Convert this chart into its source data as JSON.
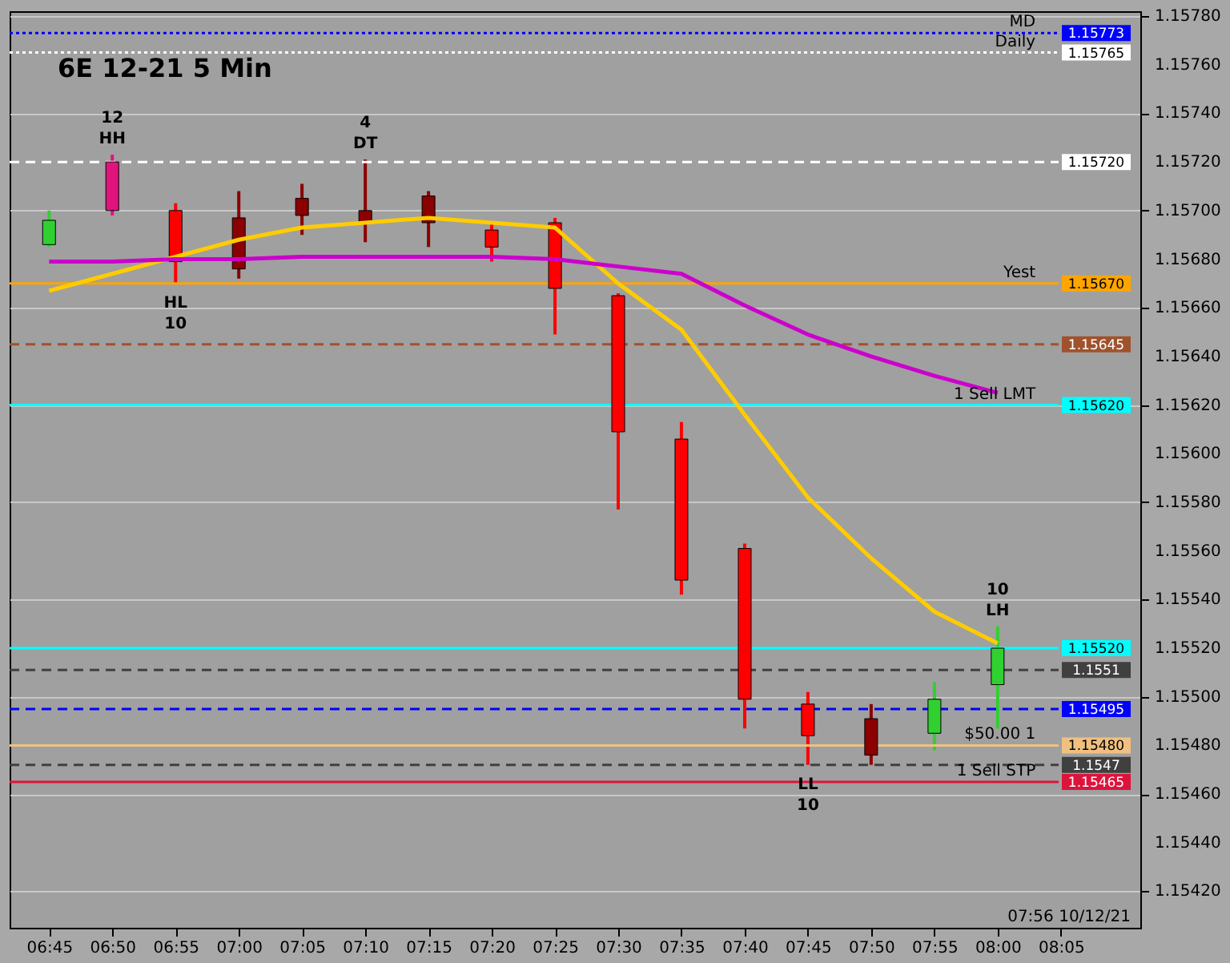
{
  "chart_data": {
    "type": "candlestick",
    "title": "6E 12-21  5 Min",
    "x": [
      6.75,
      6.8333,
      6.9167,
      7.0,
      7.0833,
      7.1667,
      7.25,
      7.3333,
      7.4167,
      7.5,
      7.5833,
      7.6667,
      7.75,
      7.8333,
      7.9167,
      8.0
    ],
    "ohlc": [
      [
        1.15686,
        1.157,
        1.15685,
        1.15696
      ],
      [
        1.157,
        1.15723,
        1.15698,
        1.1572
      ],
      [
        1.157,
        1.15703,
        1.1567,
        1.15679
      ],
      [
        1.15697,
        1.15708,
        1.15672,
        1.15676
      ],
      [
        1.15705,
        1.15711,
        1.1569,
        1.15698
      ],
      [
        1.157,
        1.15721,
        1.15687,
        1.15695
      ],
      [
        1.15706,
        1.15708,
        1.15685,
        1.15695
      ],
      [
        1.15692,
        1.15695,
        1.15679,
        1.15685
      ],
      [
        1.15695,
        1.15697,
        1.15649,
        1.15668
      ],
      [
        1.15665,
        1.15666,
        1.15577,
        1.15609
      ],
      [
        1.15606,
        1.15613,
        1.15542,
        1.15548
      ],
      [
        1.15561,
        1.15563,
        1.15487,
        1.15499
      ],
      [
        1.15497,
        1.15502,
        1.15472,
        1.15484
      ],
      [
        1.15491,
        1.15497,
        1.15472,
        1.15476
      ],
      [
        1.15485,
        1.15506,
        1.15478,
        1.15499
      ],
      [
        1.15505,
        1.15529,
        1.15487,
        1.1552
      ]
    ],
    "colors": [
      "#30d030",
      "#e0147c",
      "#ff0000",
      "#8b0000",
      "#8b0000",
      "#8b0000",
      "#8b0000",
      "#ff0000",
      "#ff0000",
      "#ff0000",
      "#ff0000",
      "#ff0000",
      "#ff0000",
      "#8b0000",
      "#30d030",
      "#30d030"
    ],
    "series": [
      {
        "type": "line",
        "color": "#ffcc00",
        "values": [
          1.15667,
          1.15674,
          1.15681,
          1.15688,
          1.15693,
          1.15695,
          1.15697,
          1.15695,
          1.15693,
          1.1567,
          1.15651,
          1.15616,
          1.15582,
          1.15557,
          1.15535,
          1.15522
        ]
      },
      {
        "type": "line",
        "color": "#cc00cc",
        "values": [
          1.15679,
          1.15679,
          1.1568,
          1.1568,
          1.15681,
          1.15681,
          1.15681,
          1.15681,
          1.1568,
          1.15677,
          1.15674,
          1.15661,
          1.15649,
          1.1564,
          1.15632,
          1.15625
        ]
      }
    ],
    "xlim": [
      6.698,
      8.188
    ],
    "ylim": [
      1.15405,
      1.15782
    ],
    "xticks": [
      {
        "value": 6.75,
        "label": "06:45"
      },
      {
        "value": 6.8333,
        "label": "06:50"
      },
      {
        "value": 6.9167,
        "label": "06:55"
      },
      {
        "value": 7.0,
        "label": "07:00"
      },
      {
        "value": 7.0833,
        "label": "07:05"
      },
      {
        "value": 7.1667,
        "label": "07:10"
      },
      {
        "value": 7.25,
        "label": "07:15"
      },
      {
        "value": 7.3333,
        "label": "07:20"
      },
      {
        "value": 7.4167,
        "label": "07:25"
      },
      {
        "value": 7.5,
        "label": "07:30"
      },
      {
        "value": 7.5833,
        "label": "07:35"
      },
      {
        "value": 7.6667,
        "label": "07:40"
      },
      {
        "value": 7.75,
        "label": "07:45"
      },
      {
        "value": 7.8333,
        "label": "07:50"
      },
      {
        "value": 7.9167,
        "label": "07:55"
      },
      {
        "value": 8.0,
        "label": "08:00"
      },
      {
        "value": 8.0833,
        "label": "08:05"
      }
    ],
    "yticks": [
      {
        "value": 1.1542,
        "label": "1.15420"
      },
      {
        "value": 1.1544,
        "label": "1.15440"
      },
      {
        "value": 1.1546,
        "label": "1.15460"
      },
      {
        "value": 1.1548,
        "label": "1.15480"
      },
      {
        "value": 1.155,
        "label": "1.15500"
      },
      {
        "value": 1.1552,
        "label": "1.15520"
      },
      {
        "value": 1.1554,
        "label": "1.15540"
      },
      {
        "value": 1.1556,
        "label": "1.15560"
      },
      {
        "value": 1.1558,
        "label": "1.15580"
      },
      {
        "value": 1.156,
        "label": "1.15600"
      },
      {
        "value": 1.1562,
        "label": "1.15620"
      },
      {
        "value": 1.1564,
        "label": "1.15640"
      },
      {
        "value": 1.1566,
        "label": "1.15660"
      },
      {
        "value": 1.1568,
        "label": "1.15680"
      },
      {
        "value": 1.157,
        "label": "1.15700"
      },
      {
        "value": 1.1572,
        "label": "1.15720"
      },
      {
        "value": 1.1574,
        "label": "1.15740"
      },
      {
        "value": 1.1576,
        "label": "1.15760"
      },
      {
        "value": 1.1578,
        "label": "1.15780"
      }
    ],
    "ref_lines": [
      {
        "axis": "y",
        "value": 1.15773,
        "label": "1.15773",
        "color": "#0000ff",
        "line_style": "dotted"
      },
      {
        "axis": "y",
        "value": 1.15765,
        "label": "1.15765",
        "color": "#ffffff",
        "line_style": "dotted"
      },
      {
        "axis": "y",
        "value": 1.1572,
        "label": "1.15720",
        "color": "#ffffff",
        "line_style": "dashed"
      },
      {
        "axis": "y",
        "value": 1.1567,
        "label": "1.15670",
        "color": "#ffa500",
        "line_style": "solid"
      },
      {
        "axis": "y",
        "value": 1.15645,
        "label": "1.15645",
        "color": "#a0522d",
        "line_style": "dashed"
      },
      {
        "axis": "y",
        "value": 1.1562,
        "label": "1.15620",
        "color": "#00ffff",
        "line_style": "solid"
      },
      {
        "axis": "y",
        "value": 1.1552,
        "label": "1.15520",
        "color": "#00ffff",
        "line_style": "solid"
      },
      {
        "axis": "y",
        "value": 1.15511,
        "label": "1.1551",
        "color": "#404040",
        "line_style": "dashed"
      },
      {
        "axis": "y",
        "value": 1.15495,
        "label": "1.15495",
        "color": "#0000ff",
        "line_style": "dashed"
      },
      {
        "axis": "y",
        "value": 1.1548,
        "label": "1.15480",
        "color": "#f0c080",
        "line_style": "solid"
      },
      {
        "axis": "y",
        "value": 1.15472,
        "label": "1.1547",
        "color": "#404040",
        "line_style": "dashed"
      },
      {
        "axis": "y",
        "value": 1.15465,
        "label": "1.15465",
        "color": "#dc143c",
        "line_style": "solid"
      }
    ],
    "annotations": [
      {
        "text": "HH",
        "x": 6.8333,
        "y": 1.15723
      },
      {
        "text": "12",
        "x": 6.8333,
        "y": 1.15723
      },
      {
        "text": "DT",
        "x": 7.1667,
        "y": 1.15721
      },
      {
        "text": "4",
        "x": 7.1667,
        "y": 1.15721
      },
      {
        "text": "HL",
        "x": 6.9167,
        "y": 1.1567
      },
      {
        "text": "10",
        "x": 6.9167,
        "y": 1.1567
      },
      {
        "text": "LL",
        "x": 7.75,
        "y": 1.15472
      },
      {
        "text": "10",
        "x": 7.75,
        "y": 1.15472
      },
      {
        "text": "LH",
        "x": 8.0,
        "y": 1.15529
      },
      {
        "text": "10",
        "x": 8.0,
        "y": 1.15529
      },
      {
        "text": "MD",
        "x": 8.05,
        "y": 1.15773
      },
      {
        "text": "Daily",
        "x": 8.05,
        "y": 1.15765
      },
      {
        "text": "Yest",
        "x": 8.05,
        "y": 1.1567
      },
      {
        "text": "1  Sell LMT",
        "x": 8.05,
        "y": 1.1562
      },
      {
        "text": "$50.00  1",
        "x": 8.05,
        "y": 1.1548
      },
      {
        "text": "1  Sell STP",
        "x": 8.05,
        "y": 1.15465
      },
      "07:56 10/12/21"
    ],
    "grid": "y"
  }
}
